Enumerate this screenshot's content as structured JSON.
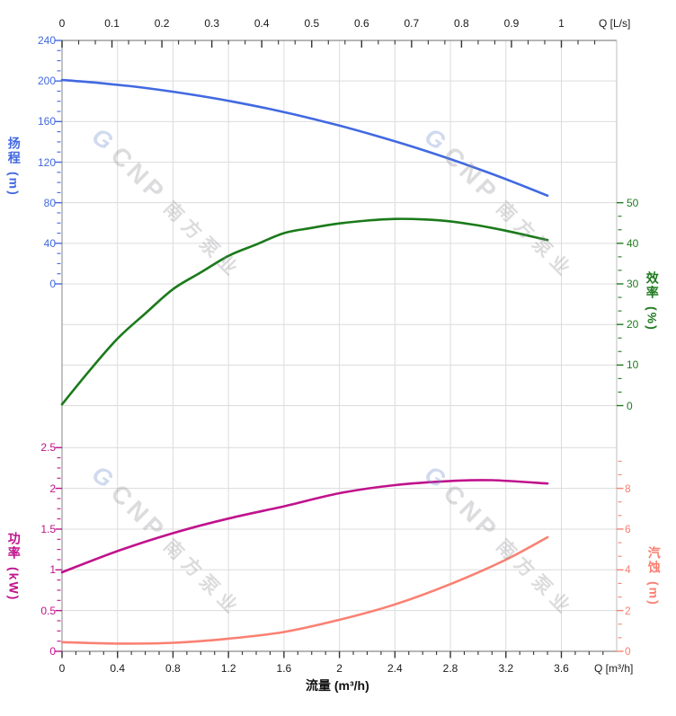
{
  "figure": {
    "watermark": {
      "logo": "G",
      "cnp": "CNP",
      "brand": "南方泵业"
    },
    "axes": {
      "top_x": {
        "unit_label": "Q [L/s]",
        "ticks": [
          "0",
          "0.1",
          "0.2",
          "0.3",
          "0.4",
          "0.5",
          "0.6",
          "0.7",
          "0.8",
          "0.9",
          "1"
        ],
        "color": "#1a1a1a"
      },
      "bottom_x": {
        "unit_label": "Q [m³/h]",
        "title": "流量 (m³/h)",
        "ticks": [
          "0",
          "0.4",
          "0.8",
          "1.2",
          "1.6",
          "2",
          "2.4",
          "2.8",
          "3.2",
          "3.6"
        ],
        "color": "#1a1a1a"
      },
      "head_y": {
        "name": "扬程",
        "unit": "(m)",
        "ticks": [
          "240",
          "200",
          "160",
          "120",
          "80",
          "40",
          "0"
        ],
        "color": "#4169E1"
      },
      "eff_y": {
        "name": "效率",
        "unit": "(%)",
        "ticks": [
          "50",
          "40",
          "30",
          "20",
          "10",
          "0"
        ],
        "color": "#1E7A1E"
      },
      "power_y": {
        "name": "功率",
        "unit": "(kW)",
        "ticks": [
          "2.5",
          "2",
          "1.5",
          "1",
          "0.5",
          "0"
        ],
        "color": "#C0128C"
      },
      "npsh_y": {
        "name": "汽蚀",
        "unit": "(m)",
        "ticks": [
          "8",
          "6",
          "4",
          "2",
          "0"
        ],
        "color": "#FA8072"
      }
    }
  },
  "chart_data": [
    {
      "type": "line",
      "panel": "top",
      "x_label": "流量 (m³/h)",
      "x_label_secondary": "Q [L/s]",
      "x_range_m3h": [
        0,
        4.0
      ],
      "x_range_ls": [
        0,
        1.11
      ],
      "grid": true,
      "y_axes": {
        "head": {
          "label": "扬程 (m)",
          "range": [
            0,
            240
          ],
          "tick_step": 40
        },
        "eff": {
          "label": "效率 (%)",
          "range": [
            0,
            50
          ],
          "tick_step": 10
        }
      },
      "series": [
        {
          "name": "扬程",
          "axis": "head",
          "color": "#4169E1",
          "x": [
            0,
            0.25,
            0.5,
            0.75,
            1,
            1.25,
            1.5,
            1.75,
            2,
            2.25,
            2.5,
            2.75,
            3,
            3.25,
            3.5
          ],
          "y": [
            201,
            198.3,
            194.8,
            190.4,
            185.2,
            179.2,
            172.3,
            164.6,
            156,
            146.6,
            136.4,
            125.3,
            113.4,
            100.6,
            87
          ]
        },
        {
          "name": "效率",
          "axis": "eff",
          "color": "#1A7A1A",
          "x": [
            0,
            0.2,
            0.4,
            0.6,
            0.8,
            1,
            1.2,
            1.4,
            1.6,
            1.8,
            2,
            2.2,
            2.4,
            2.6,
            2.8,
            3,
            3.2,
            3.5
          ],
          "y": [
            0.3,
            8.7,
            16.5,
            22.7,
            28.7,
            32.8,
            36.9,
            39.7,
            42.5,
            43.8,
            44.9,
            45.6,
            46,
            45.9,
            45.4,
            44.4,
            43.1,
            40.8
          ]
        }
      ]
    },
    {
      "type": "line",
      "panel": "bottom",
      "x_label": "流量 (m³/h)",
      "x_range_m3h": [
        0,
        4.0
      ],
      "grid": true,
      "y_axes": {
        "power": {
          "label": "功率 (kW)",
          "range": [
            0,
            2.5
          ],
          "tick_step": 0.5
        },
        "npsh": {
          "label": "汽蚀 (m)",
          "range": [
            0,
            8
          ],
          "tick_step": 2
        }
      },
      "series": [
        {
          "name": "功率",
          "axis": "power",
          "color": "#C0128C",
          "x": [
            0,
            0.4,
            0.8,
            1.2,
            1.6,
            2,
            2.4,
            2.8,
            3.1,
            3.5
          ],
          "y": [
            0.97,
            1.23,
            1.45,
            1.63,
            1.78,
            1.94,
            2.04,
            2.09,
            2.1,
            2.06
          ]
        },
        {
          "name": "汽蚀",
          "axis": "npsh",
          "color": "#FA8072",
          "x": [
            0,
            0.4,
            0.8,
            1.2,
            1.6,
            2,
            2.4,
            2.8,
            3.2,
            3.5
          ],
          "y": [
            0.45,
            0.38,
            0.42,
            0.62,
            0.95,
            1.55,
            2.3,
            3.3,
            4.5,
            5.6
          ]
        }
      ]
    }
  ]
}
